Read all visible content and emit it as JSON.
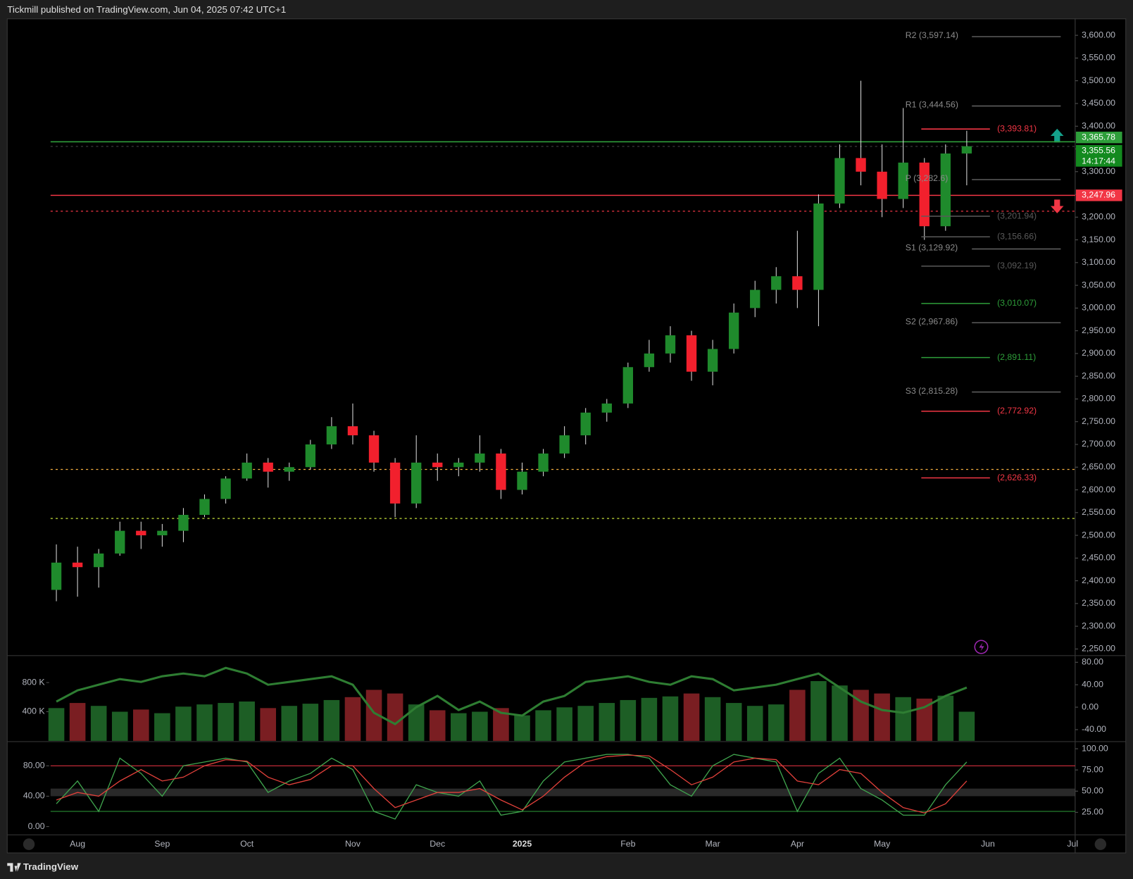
{
  "header": "Tickmill published on TradingView.com, Jun 04, 2025 07:42 UTC+1",
  "footer": "TradingView",
  "chart_data": [
    {
      "type": "candlestick",
      "categories": [
        null,
        "Aug",
        null,
        null,
        null,
        "Sep",
        null,
        null,
        null,
        "Oct",
        null,
        null,
        null,
        null,
        "Nov",
        null,
        null,
        null,
        "Dec",
        null,
        null,
        null,
        "2025",
        null,
        null,
        null,
        null,
        "Feb",
        null,
        null,
        null,
        "Mar",
        null,
        null,
        null,
        "Apr",
        null,
        null,
        null,
        "May",
        null,
        null,
        null,
        null,
        "Jun",
        null,
        null,
        null,
        "Jul"
      ],
      "open": [
        2380,
        2440,
        2430,
        2460,
        2510,
        2500,
        2510,
        2545,
        2580,
        2625,
        2660,
        2640,
        2650,
        2700,
        2740,
        2720,
        2660,
        2570,
        2660,
        2650,
        2660,
        2680,
        2600,
        2640,
        2680,
        2720,
        2770,
        2790,
        2870,
        2900,
        2940,
        2860,
        2910,
        3000,
        3040,
        3070,
        3040,
        3230,
        3330,
        3300,
        3240,
        3320,
        3180,
        3340,
        null,
        null,
        null,
        null,
        null
      ],
      "high": [
        2480,
        2475,
        2470,
        2530,
        2530,
        2525,
        2560,
        2590,
        2630,
        2680,
        2670,
        2660,
        2710,
        2760,
        2790,
        2730,
        2670,
        2720,
        2680,
        2670,
        2720,
        2690,
        2660,
        2690,
        2740,
        2780,
        2800,
        2880,
        2930,
        2960,
        2950,
        2930,
        3010,
        3060,
        3090,
        3170,
        3250,
        3360,
        3500,
        3360,
        3440,
        3330,
        3360,
        3390,
        null,
        null,
        null,
        null,
        null
      ],
      "low": [
        2355,
        2365,
        2385,
        2455,
        2470,
        2475,
        2485,
        2540,
        2570,
        2620,
        2605,
        2620,
        2645,
        2690,
        2700,
        2640,
        2540,
        2560,
        2620,
        2630,
        2640,
        2580,
        2590,
        2630,
        2670,
        2700,
        2750,
        2780,
        2860,
        2880,
        2840,
        2830,
        2900,
        2980,
        3010,
        3000,
        2960,
        3220,
        3270,
        3200,
        3220,
        3150,
        3170,
        3270,
        null,
        null,
        null,
        null,
        null
      ],
      "close": [
        2440,
        2430,
        2460,
        2510,
        2500,
        2510,
        2545,
        2580,
        2625,
        2660,
        2640,
        2650,
        2700,
        2740,
        2720,
        2660,
        2570,
        2660,
        2650,
        2660,
        2680,
        2600,
        2640,
        2680,
        2720,
        2770,
        2790,
        2870,
        2900,
        2940,
        2860,
        2910,
        2990,
        3040,
        3070,
        3040,
        3230,
        3330,
        3300,
        3240,
        3320,
        3180,
        3340,
        3356,
        null,
        null,
        null,
        null,
        null
      ],
      "up_color": "#1f8a2c",
      "down_color": "#f2202d",
      "ylim": [
        2237,
        3633
      ],
      "yticks": [
        {
          "value": 2250,
          "label": "2,250.00"
        },
        {
          "value": 2300,
          "label": "2,300.00"
        },
        {
          "value": 2350,
          "label": "2,350.00"
        },
        {
          "value": 2400,
          "label": "2,400.00"
        },
        {
          "value": 2450,
          "label": "2,450.00"
        },
        {
          "value": 2500,
          "label": "2,500.00"
        },
        {
          "value": 2550,
          "label": "2,550.00"
        },
        {
          "value": 2600,
          "label": "2,600.00"
        },
        {
          "value": 2650,
          "label": "2,650.00"
        },
        {
          "value": 2700,
          "label": "2,700.00"
        },
        {
          "value": 2750,
          "label": "2,750.00"
        },
        {
          "value": 2800,
          "label": "2,800.00"
        },
        {
          "value": 2850,
          "label": "2,850.00"
        },
        {
          "value": 2900,
          "label": "2,900.00"
        },
        {
          "value": 2950,
          "label": "2,950.00"
        },
        {
          "value": 3000,
          "label": "3,000.00"
        },
        {
          "value": 3050,
          "label": "3,050.00"
        },
        {
          "value": 3100,
          "label": "3,100.00"
        },
        {
          "value": 3150,
          "label": "3,150.00"
        },
        {
          "value": 3200,
          "label": "3,200.00"
        },
        {
          "value": 3250,
          "label": "3,250.00"
        },
        {
          "value": 3300,
          "label": "3,300.00"
        },
        {
          "value": 3350,
          "label": "3,350.00"
        },
        {
          "value": 3400,
          "label": "3,400.00"
        },
        {
          "value": 3450,
          "label": "3,450.00"
        },
        {
          "value": 3500,
          "label": "3,500.00"
        },
        {
          "value": 3550,
          "label": "3,550.00"
        },
        {
          "value": 3600,
          "label": "3,600.00"
        }
      ],
      "pivots": [
        {
          "label": "R2 (3,597.14)",
          "value": 3597.14,
          "color": "#8a8a8a"
        },
        {
          "label": "R1 (3,444.56)",
          "value": 3444.56,
          "color": "#8a8a8a"
        },
        {
          "label": "P (3,282.6)",
          "value": 3282.6,
          "color": "#8a8a8a"
        },
        {
          "label": "S1 (3,129.92)",
          "value": 3129.92,
          "color": "#8a8a8a"
        },
        {
          "label": "S2 (2,967.86)",
          "value": 2967.86,
          "color": "#8a8a8a"
        },
        {
          "label": "S3 (2,815.28)",
          "value": 2815.28,
          "color": "#8a8a8a"
        }
      ],
      "levels": [
        {
          "label": "(3,393.81)",
          "value": 3393.81,
          "color": "#f23645"
        },
        {
          "label": "(3,201.94)",
          "value": 3201.94,
          "color": "#5a5a5a"
        },
        {
          "label": "(3,156.66)",
          "value": 3156.66,
          "color": "#5a5a5a"
        },
        {
          "label": "(3,092.19)",
          "value": 3092.19,
          "color": "#5a5a5a"
        },
        {
          "label": "(3,010.07)",
          "value": 3010.07,
          "color": "#2e9e3a"
        },
        {
          "label": "(2,891.11)",
          "value": 2891.11,
          "color": "#2e9e3a"
        },
        {
          "label": "(2,772.92)",
          "value": 2772.92,
          "color": "#f23645"
        },
        {
          "label": "(2,626.33)",
          "value": 2626.33,
          "color": "#f23645"
        }
      ],
      "hlines": [
        {
          "value": 3365.78,
          "color": "#2e9e3a",
          "dashed": false
        },
        {
          "value": 3355.56,
          "color": "#3a3a3a",
          "dashed": true
        },
        {
          "value": 3247.96,
          "color": "#f23645",
          "dashed": false
        },
        {
          "value": 3213,
          "color": "#f23645",
          "dashed": true
        },
        {
          "value": 2645,
          "color": "#f5b041",
          "dashed": true
        },
        {
          "value": 2537,
          "color": "#c6e03a",
          "dashed": true
        }
      ],
      "price_tags": [
        {
          "value": 3365.78,
          "label": "3,365.78",
          "color": "#2e9e3a"
        },
        {
          "value": 3355.56,
          "label": "3,355.56",
          "color": "#138a1f"
        },
        {
          "value": 3247.96,
          "label": "3,247.96",
          "color": "#f23645"
        }
      ],
      "countdown": "14:17:44"
    },
    {
      "type": "bar",
      "values": [
        450000,
        520000,
        480000,
        400000,
        430000,
        380000,
        470000,
        500000,
        520000,
        540000,
        450000,
        480000,
        510000,
        560000,
        600000,
        700000,
        650000,
        500000,
        420000,
        380000,
        400000,
        450000,
        350000,
        420000,
        460000,
        480000,
        520000,
        560000,
        590000,
        610000,
        650000,
        600000,
        520000,
        480000,
        500000,
        700000,
        820000,
        760000,
        700000,
        650000,
        600000,
        580000,
        620000,
        400000,
        null,
        null,
        null,
        null,
        null
      ],
      "up_color": "#1d5e25",
      "down_color": "#7a1e22",
      "ylim": [
        0,
        1140000
      ],
      "yticks": [
        {
          "value": 400000,
          "label": "400 K"
        },
        {
          "value": 800000,
          "label": "800 K"
        }
      ],
      "y2lim": [
        -60,
        88
      ],
      "y2ticks": [
        {
          "value": -40,
          "label": "-40.00"
        },
        {
          "value": 0,
          "label": "0.00"
        },
        {
          "value": 40,
          "label": "40.00"
        },
        {
          "value": 80,
          "label": "80.00"
        }
      ],
      "series": [
        {
          "axis": "y2",
          "color": "#2e7d32",
          "values": [
            10,
            30,
            40,
            50,
            45,
            55,
            60,
            55,
            70,
            60,
            40,
            45,
            50,
            55,
            40,
            -10,
            -30,
            0,
            20,
            -5,
            10,
            -10,
            -15,
            10,
            20,
            45,
            50,
            55,
            45,
            40,
            55,
            50,
            30,
            35,
            40,
            50,
            60,
            35,
            10,
            -5,
            -10,
            0,
            20,
            35,
            null,
            null,
            null,
            null,
            null
          ]
        }
      ]
    },
    {
      "type": "line",
      "ylim": [
        -8,
        108
      ],
      "yticks": [
        {
          "value": 0,
          "label": "0.00"
        },
        {
          "value": 40,
          "label": "40.00"
        },
        {
          "value": 80,
          "label": "80.00"
        }
      ],
      "y2lim": [
        1,
        105
      ],
      "y2ticks": [
        {
          "value": 25,
          "label": "25.00"
        },
        {
          "value": 50,
          "label": "50.00"
        },
        {
          "value": 75,
          "label": "75.00"
        },
        {
          "value": 100,
          "label": "100.00"
        }
      ],
      "band": [
        40,
        50
      ],
      "levels": [
        {
          "value": 80,
          "color": "#f23645"
        },
        {
          "value": 20,
          "color": "#2e9e3a"
        }
      ],
      "series": [
        {
          "color": "#3fa34d",
          "values": [
            30,
            60,
            20,
            90,
            70,
            40,
            80,
            85,
            90,
            85,
            45,
            60,
            70,
            90,
            75,
            20,
            10,
            55,
            45,
            40,
            60,
            15,
            20,
            60,
            85,
            90,
            95,
            95,
            90,
            55,
            40,
            80,
            95,
            90,
            85,
            20,
            70,
            90,
            50,
            35,
            15,
            15,
            55,
            85,
            null,
            null,
            null,
            null,
            null
          ]
        },
        {
          "color": "#e0403a",
          "values": [
            35,
            45,
            40,
            60,
            75,
            60,
            65,
            80,
            88,
            86,
            65,
            55,
            62,
            80,
            80,
            50,
            25,
            35,
            45,
            45,
            50,
            35,
            22,
            40,
            65,
            85,
            92,
            94,
            93,
            75,
            55,
            65,
            85,
            90,
            88,
            60,
            55,
            75,
            70,
            45,
            25,
            18,
            30,
            60,
            null,
            null,
            null,
            null,
            null
          ]
        }
      ]
    }
  ]
}
